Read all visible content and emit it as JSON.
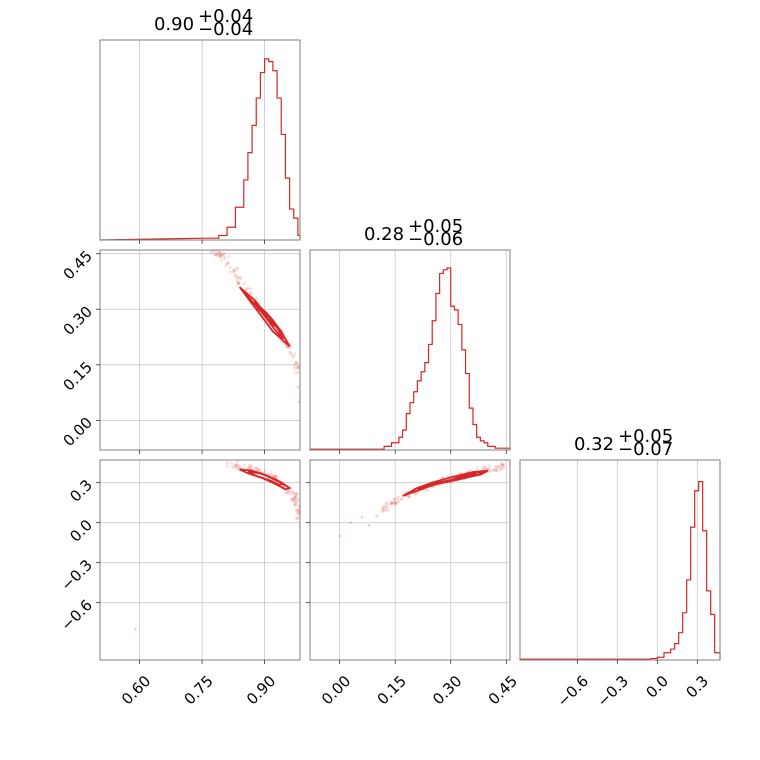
{
  "chart_data": {
    "type": "corner",
    "color": "#d62728",
    "grid": true,
    "params": [
      {
        "summary": {
          "median": "0.90",
          "plus": "+0.04",
          "minus": "−0.04"
        },
        "range": [
          0.505,
          0.985
        ],
        "ticks": [
          0.6,
          0.75,
          0.9
        ],
        "tick_labels": [
          "0.60",
          "0.75",
          "0.90"
        ],
        "hist_ranges": [
          [
            0.76,
            0.79,
            0.01
          ],
          [
            0.79,
            0.81,
            0.025
          ],
          [
            0.81,
            0.83,
            0.07
          ],
          [
            0.83,
            0.85,
            0.18
          ],
          [
            0.85,
            0.86,
            0.33
          ],
          [
            0.86,
            0.87,
            0.48
          ],
          [
            0.87,
            0.88,
            0.63
          ],
          [
            0.88,
            0.89,
            0.78
          ],
          [
            0.89,
            0.9,
            0.92
          ],
          [
            0.9,
            0.91,
            0.995
          ],
          [
            0.91,
            0.92,
            0.98
          ],
          [
            0.92,
            0.93,
            0.93
          ],
          [
            0.93,
            0.94,
            0.78
          ],
          [
            0.94,
            0.95,
            0.58
          ],
          [
            0.95,
            0.96,
            0.34
          ],
          [
            0.96,
            0.97,
            0.17
          ],
          [
            0.97,
            0.98,
            0.12
          ],
          [
            0.98,
            0.985,
            0.025
          ]
        ]
      },
      {
        "summary": {
          "median": "0.28",
          "plus": "+0.05",
          "minus": "−0.06"
        },
        "range": [
          -0.08,
          0.46
        ],
        "ticks": [
          0.0,
          0.15,
          0.3,
          0.45
        ],
        "tick_labels": [
          "0.00",
          "0.15",
          "0.30",
          "0.45"
        ],
        "hist_ranges": [
          [
            -0.08,
            0.12,
            0.004
          ],
          [
            0.12,
            0.14,
            0.02
          ],
          [
            0.14,
            0.16,
            0.04
          ],
          [
            0.16,
            0.17,
            0.07
          ],
          [
            0.17,
            0.18,
            0.11
          ],
          [
            0.18,
            0.19,
            0.2
          ],
          [
            0.19,
            0.2,
            0.26
          ],
          [
            0.2,
            0.21,
            0.32
          ],
          [
            0.21,
            0.22,
            0.38
          ],
          [
            0.22,
            0.23,
            0.43
          ],
          [
            0.23,
            0.24,
            0.48
          ],
          [
            0.24,
            0.25,
            0.58
          ],
          [
            0.25,
            0.26,
            0.71
          ],
          [
            0.26,
            0.27,
            0.86
          ],
          [
            0.27,
            0.28,
            0.97
          ],
          [
            0.28,
            0.29,
            0.99
          ],
          [
            0.29,
            0.3,
            1.0
          ],
          [
            0.3,
            0.31,
            0.79
          ],
          [
            0.31,
            0.32,
            0.77
          ],
          [
            0.32,
            0.33,
            0.69
          ],
          [
            0.33,
            0.34,
            0.55
          ],
          [
            0.34,
            0.35,
            0.42
          ],
          [
            0.35,
            0.36,
            0.23
          ],
          [
            0.36,
            0.37,
            0.14
          ],
          [
            0.37,
            0.38,
            0.07
          ],
          [
            0.38,
            0.39,
            0.05
          ],
          [
            0.39,
            0.4,
            0.04
          ],
          [
            0.4,
            0.42,
            0.02
          ],
          [
            0.42,
            0.46,
            0.01
          ]
        ]
      },
      {
        "summary": {
          "median": "0.32",
          "plus": "+0.05",
          "minus": "−0.07"
        },
        "range": [
          -1.03,
          0.47
        ],
        "ticks": [
          -0.6,
          -0.3,
          0.0,
          0.3
        ],
        "tick_labels": [
          "−0.6",
          "−0.3",
          "0.0",
          "0.3"
        ],
        "hist_ranges": [
          [
            -1.03,
            -0.05,
            0.004
          ],
          [
            -0.05,
            0.0,
            0.008
          ],
          [
            0.0,
            0.05,
            0.015
          ],
          [
            0.05,
            0.1,
            0.04
          ],
          [
            0.1,
            0.13,
            0.06
          ],
          [
            0.13,
            0.16,
            0.09
          ],
          [
            0.16,
            0.19,
            0.15
          ],
          [
            0.19,
            0.22,
            0.26
          ],
          [
            0.22,
            0.25,
            0.44
          ],
          [
            0.25,
            0.28,
            0.73
          ],
          [
            0.28,
            0.31,
            0.93
          ],
          [
            0.31,
            0.34,
            0.98
          ],
          [
            0.34,
            0.37,
            0.71
          ],
          [
            0.37,
            0.4,
            0.38
          ],
          [
            0.4,
            0.43,
            0.25
          ],
          [
            0.43,
            0.47,
            0.04
          ]
        ]
      }
    ],
    "pairs": [
      {
        "x": 0,
        "y": 1,
        "contours": [
          [
            [
              0.84,
              0.36
            ],
            [
              0.86,
              0.34
            ],
            [
              0.88,
              0.32
            ],
            [
              0.9,
              0.29
            ],
            [
              0.92,
              0.27
            ],
            [
              0.94,
              0.24
            ],
            [
              0.96,
              0.2
            ],
            [
              0.94,
              0.22
            ],
            [
              0.92,
              0.24
            ],
            [
              0.9,
              0.27
            ],
            [
              0.88,
              0.3
            ],
            [
              0.86,
              0.33
            ],
            [
              0.84,
              0.36
            ]
          ],
          [
            [
              0.855,
              0.34
            ],
            [
              0.87,
              0.32
            ],
            [
              0.89,
              0.3
            ],
            [
              0.91,
              0.28
            ],
            [
              0.93,
              0.25
            ],
            [
              0.945,
              0.22
            ],
            [
              0.935,
              0.23
            ],
            [
              0.915,
              0.26
            ],
            [
              0.895,
              0.29
            ],
            [
              0.875,
              0.315
            ],
            [
              0.855,
              0.34
            ]
          ],
          [
            [
              0.875,
              0.32
            ],
            [
              0.89,
              0.305
            ],
            [
              0.905,
              0.29
            ],
            [
              0.92,
              0.27
            ],
            [
              0.925,
              0.255
            ],
            [
              0.915,
              0.265
            ],
            [
              0.9,
              0.285
            ],
            [
              0.885,
              0.3
            ],
            [
              0.875,
              0.32
            ]
          ]
        ],
        "scatter_band": [
          [
            0.77,
            0.47
          ],
          [
            0.79,
            0.45
          ],
          [
            0.81,
            0.43
          ],
          [
            0.83,
            0.4
          ],
          [
            0.85,
            0.36
          ],
          [
            0.87,
            0.33
          ],
          [
            0.89,
            0.3
          ],
          [
            0.91,
            0.27
          ],
          [
            0.93,
            0.24
          ],
          [
            0.95,
            0.21
          ],
          [
            0.97,
            0.17
          ],
          [
            0.985,
            0.13
          ]
        ],
        "outliers": [
          [
            0.98,
            0.09
          ],
          [
            0.985,
            0.07
          ],
          [
            0.983,
            0.05
          ]
        ]
      },
      {
        "x": 0,
        "y": 2,
        "contours": [
          [
            [
              0.84,
              0.4
            ],
            [
              0.87,
              0.39
            ],
            [
              0.9,
              0.36
            ],
            [
              0.93,
              0.32
            ],
            [
              0.96,
              0.26
            ],
            [
              0.95,
              0.25
            ],
            [
              0.92,
              0.3
            ],
            [
              0.89,
              0.34
            ],
            [
              0.86,
              0.37
            ],
            [
              0.84,
              0.4
            ]
          ],
          [
            [
              0.86,
              0.385
            ],
            [
              0.89,
              0.37
            ],
            [
              0.92,
              0.33
            ],
            [
              0.945,
              0.29
            ],
            [
              0.935,
              0.285
            ],
            [
              0.91,
              0.32
            ],
            [
              0.88,
              0.35
            ],
            [
              0.86,
              0.385
            ]
          ]
        ],
        "scatter_band": [
          [
            0.8,
            0.45
          ],
          [
            0.83,
            0.43
          ],
          [
            0.86,
            0.41
          ],
          [
            0.89,
            0.38
          ],
          [
            0.92,
            0.34
          ],
          [
            0.94,
            0.3
          ],
          [
            0.96,
            0.24
          ],
          [
            0.975,
            0.18
          ],
          [
            0.985,
            0.1
          ],
          [
            0.985,
            0.04
          ]
        ],
        "outliers": [
          [
            0.59,
            -0.8
          ],
          [
            0.985,
            -0.03
          ]
        ]
      },
      {
        "x": 1,
        "y": 2,
        "contours": [
          [
            [
              0.17,
              0.2
            ],
            [
              0.21,
              0.26
            ],
            [
              0.25,
              0.3
            ],
            [
              0.3,
              0.34
            ],
            [
              0.36,
              0.38
            ],
            [
              0.4,
              0.39
            ],
            [
              0.38,
              0.36
            ],
            [
              0.32,
              0.33
            ],
            [
              0.26,
              0.29
            ],
            [
              0.21,
              0.24
            ],
            [
              0.17,
              0.2
            ]
          ],
          [
            [
              0.21,
              0.25
            ],
            [
              0.25,
              0.29
            ],
            [
              0.3,
              0.32
            ],
            [
              0.35,
              0.37
            ],
            [
              0.39,
              0.385
            ],
            [
              0.37,
              0.355
            ],
            [
              0.32,
              0.325
            ],
            [
              0.27,
              0.295
            ],
            [
              0.21,
              0.25
            ]
          ],
          [
            [
              0.25,
              0.285
            ],
            [
              0.29,
              0.31
            ],
            [
              0.34,
              0.35
            ],
            [
              0.37,
              0.37
            ],
            [
              0.34,
              0.335
            ],
            [
              0.29,
              0.305
            ],
            [
              0.25,
              0.285
            ]
          ]
        ],
        "scatter_band": [
          [
            0.12,
            0.1
          ],
          [
            0.15,
            0.16
          ],
          [
            0.18,
            0.21
          ],
          [
            0.21,
            0.25
          ],
          [
            0.25,
            0.29
          ],
          [
            0.29,
            0.32
          ],
          [
            0.33,
            0.35
          ],
          [
            0.37,
            0.38
          ],
          [
            0.41,
            0.41
          ],
          [
            0.45,
            0.43
          ]
        ],
        "outliers": [
          [
            0.0,
            -0.1
          ],
          [
            0.03,
            0.0
          ],
          [
            0.08,
            -0.02
          ],
          [
            0.1,
            0.05
          ],
          [
            0.06,
            0.04
          ]
        ]
      }
    ]
  }
}
